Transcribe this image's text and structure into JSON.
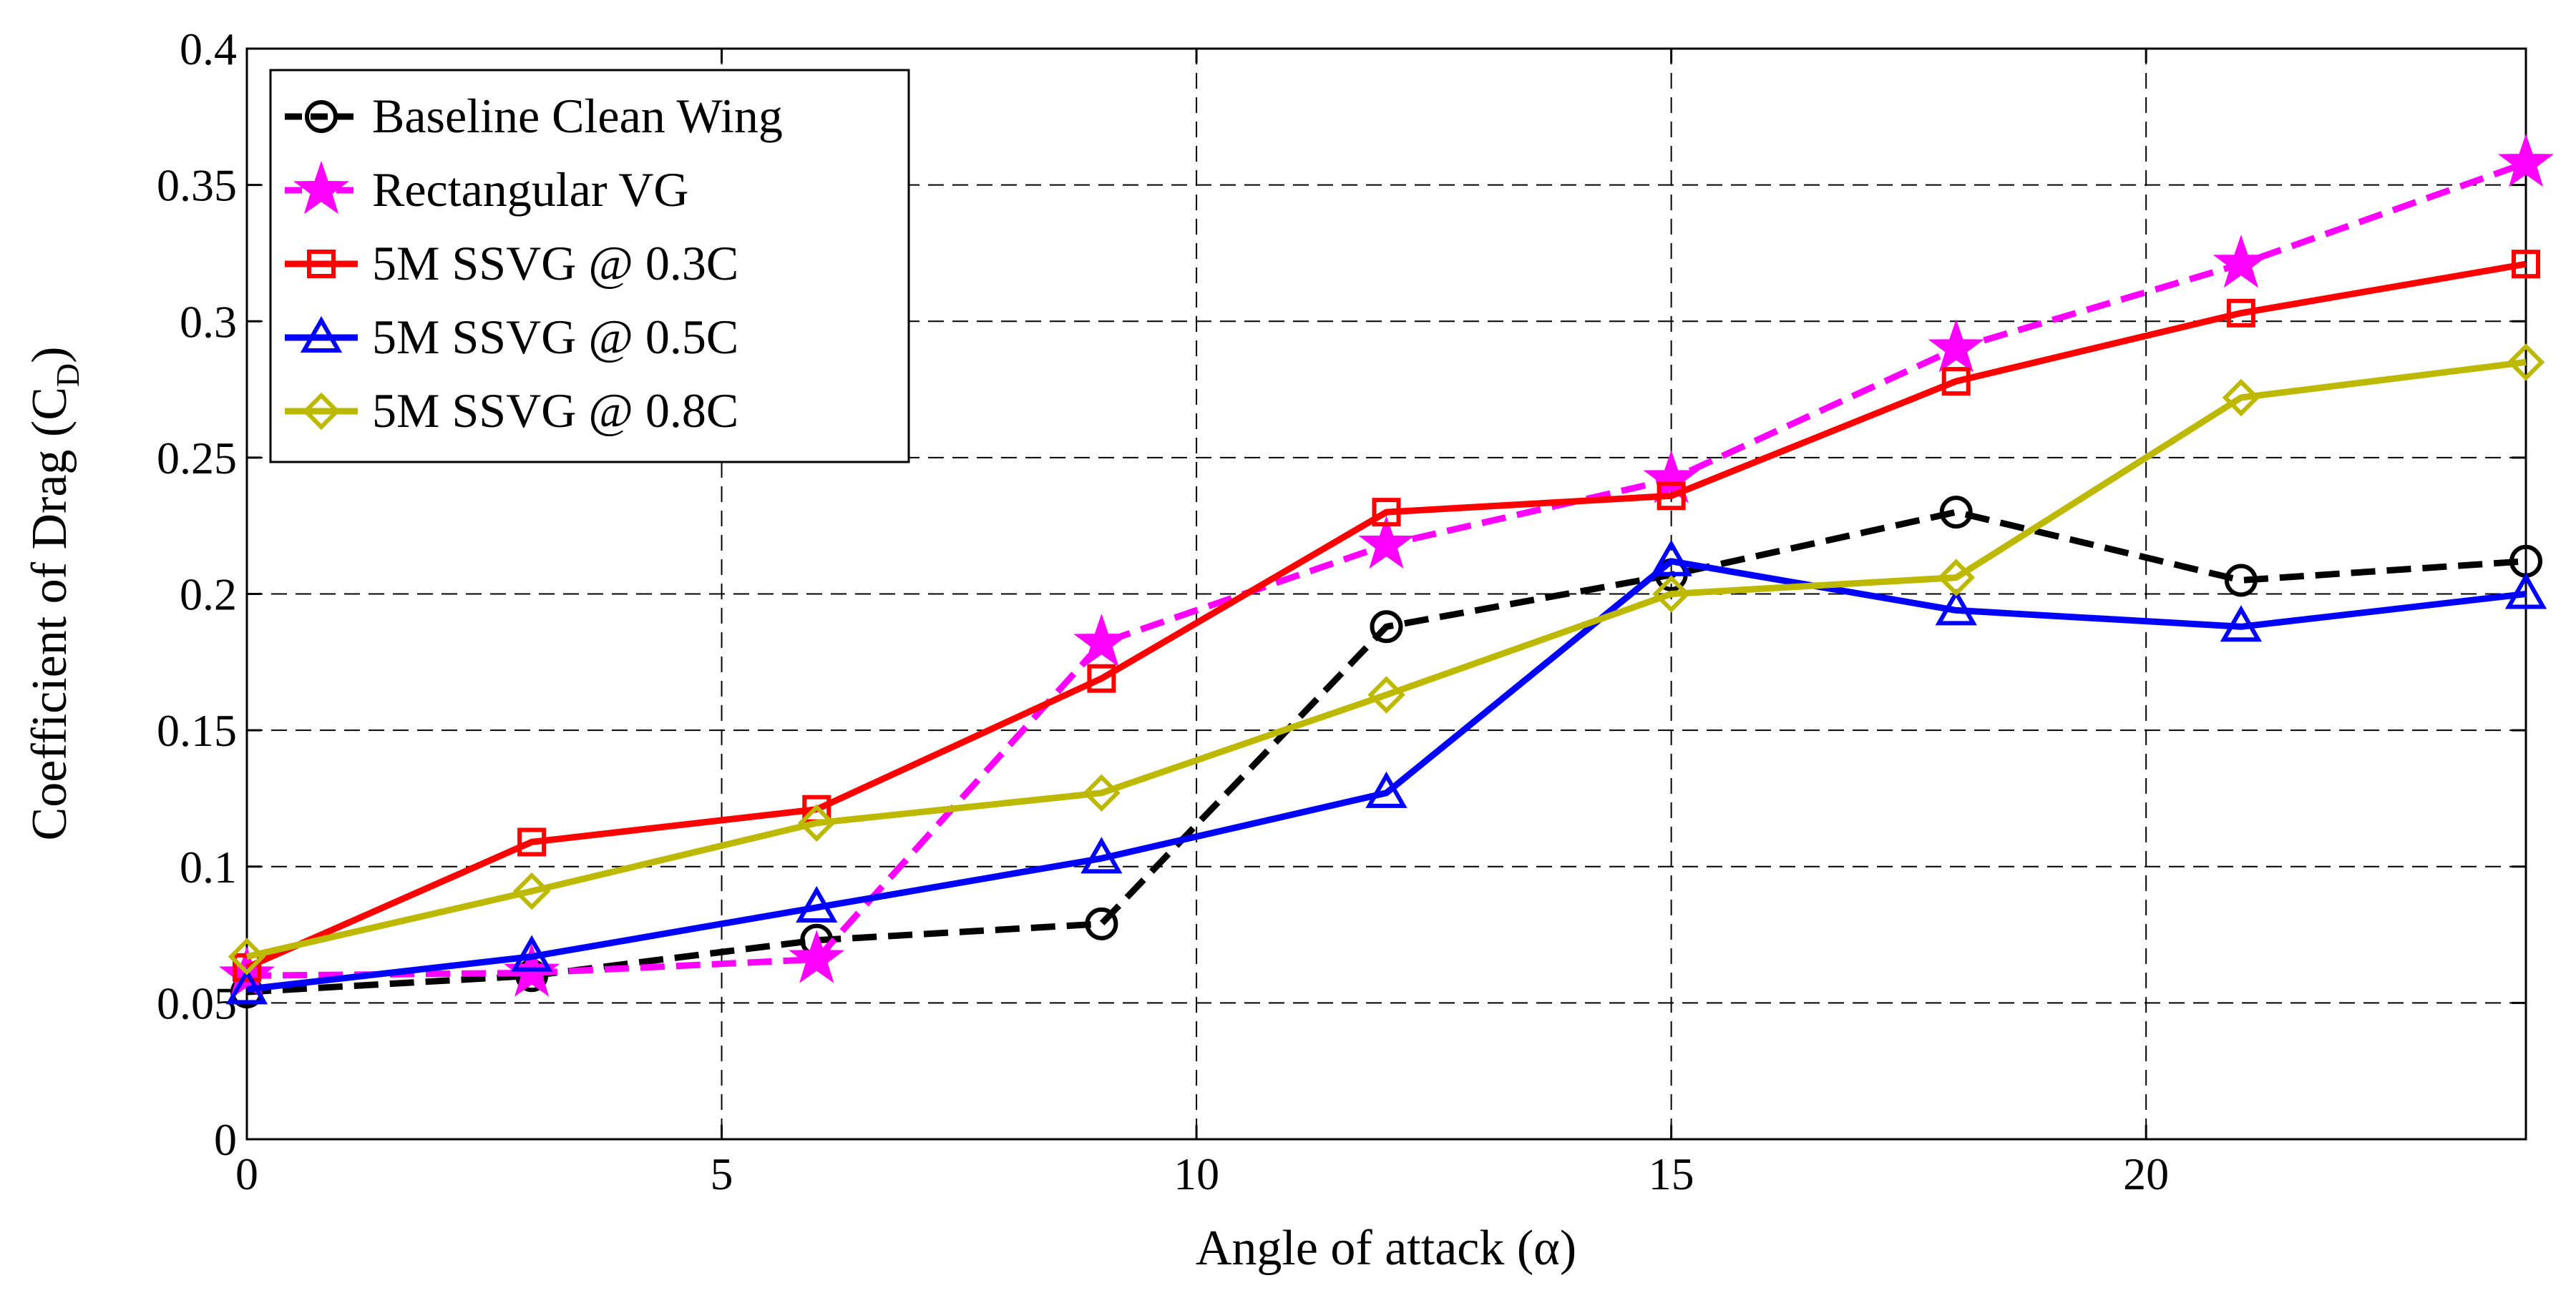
{
  "chart_data": {
    "type": "line",
    "xlabel": "Angle of attack (α)",
    "ylabel_main": "Coefficient of Drag (C",
    "ylabel_sub": "D",
    "ylabel_close": ")",
    "xlim": [
      0,
      24
    ],
    "ylim": [
      0,
      0.4
    ],
    "xticks": [
      "0",
      "5",
      "10",
      "15",
      "20"
    ],
    "yticks": [
      "0",
      "0.05",
      "0.1",
      "0.15",
      "0.2",
      "0.25",
      "0.3",
      "0.35",
      "0.4"
    ],
    "grid": true,
    "legend_position": "top-left",
    "x": [
      0,
      3,
      6,
      9,
      12,
      15,
      18,
      21,
      24
    ],
    "series": [
      {
        "name": "Baseline Clean Wing",
        "color": "#000000",
        "dash": "dashed",
        "marker": "circle",
        "values": [
          0.054,
          0.06,
          0.073,
          0.079,
          0.188,
          0.207,
          0.23,
          0.205,
          0.212
        ]
      },
      {
        "name": "Rectangular VG",
        "color": "#ff00ff",
        "dash": "dashed",
        "marker": "star",
        "values": [
          0.06,
          0.061,
          0.066,
          0.182,
          0.218,
          0.242,
          0.29,
          0.321,
          0.358
        ]
      },
      {
        "name": "5M SSVG @ 0.3C",
        "color": "#ff0000",
        "dash": "solid",
        "marker": "square",
        "values": [
          0.063,
          0.109,
          0.121,
          0.169,
          0.23,
          0.236,
          0.278,
          0.303,
          0.321
        ]
      },
      {
        "name": "5M SSVG @ 0.5C",
        "color": "#0000ff",
        "dash": "solid",
        "marker": "triangle",
        "values": [
          0.055,
          0.067,
          0.085,
          0.103,
          0.127,
          0.212,
          0.194,
          0.188,
          0.2
        ]
      },
      {
        "name": "5M SSVG @ 0.8C",
        "color": "#bdb800",
        "dash": "solid",
        "marker": "diamond",
        "values": [
          0.067,
          0.091,
          0.116,
          0.127,
          0.163,
          0.2,
          0.206,
          0.272,
          0.285
        ]
      }
    ]
  }
}
